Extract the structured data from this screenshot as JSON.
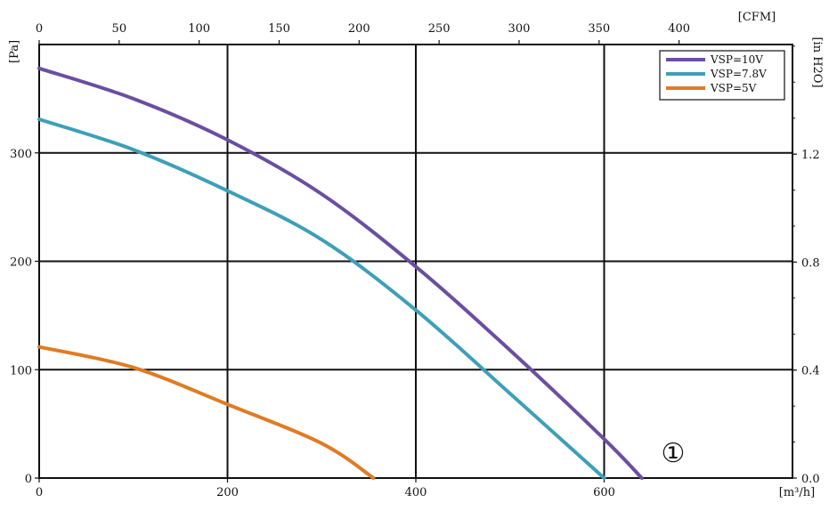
{
  "chart_data": {
    "type": "line",
    "bottom_axis": {
      "unit": "[m³/h]",
      "ticks": [
        0,
        200,
        400,
        600
      ],
      "range": [
        0,
        800
      ]
    },
    "top_axis": {
      "unit": "[CFM]",
      "ticks": [
        0,
        50,
        100,
        150,
        200,
        250,
        300,
        350,
        400
      ],
      "range": [
        0,
        470.9
      ]
    },
    "left_axis": {
      "unit": "[Pa]",
      "ticks": [
        0,
        100,
        200,
        300
      ],
      "range": [
        0,
        400
      ]
    },
    "right_axis": {
      "unit": "[in H2O]",
      "ticks": [
        "0.0",
        "0.4",
        "0.8",
        "1.2"
      ],
      "range": [
        0,
        1.606
      ]
    },
    "grid": true,
    "legend_position": "top-right",
    "annotation": "①",
    "series": [
      {
        "name": "VSP=10V",
        "color": "#6b4ea0",
        "points": [
          [
            0,
            378
          ],
          [
            100,
            350
          ],
          [
            200,
            312
          ],
          [
            300,
            262
          ],
          [
            400,
            195
          ],
          [
            500,
            118
          ],
          [
            600,
            36
          ],
          [
            640,
            0
          ]
        ]
      },
      {
        "name": "VSP=7.8V",
        "color": "#3e9fb8",
        "points": [
          [
            0,
            331
          ],
          [
            100,
            303
          ],
          [
            200,
            265
          ],
          [
            300,
            220
          ],
          [
            400,
            155
          ],
          [
            500,
            78
          ],
          [
            600,
            0
          ]
        ]
      },
      {
        "name": "VSP=5V",
        "color": "#e07b24",
        "points": [
          [
            0,
            121
          ],
          [
            100,
            102
          ],
          [
            200,
            68
          ],
          [
            300,
            32
          ],
          [
            355,
            0
          ]
        ]
      }
    ]
  }
}
